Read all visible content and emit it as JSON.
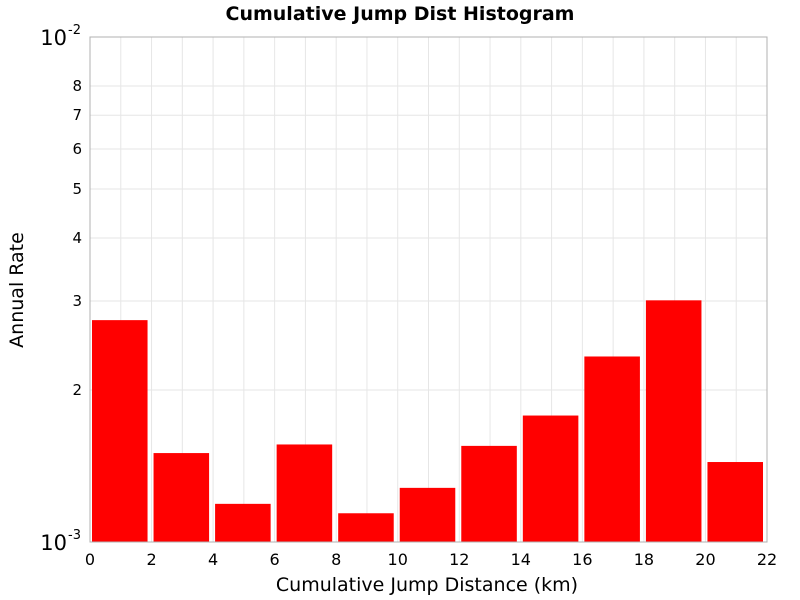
{
  "chart_data": {
    "type": "bar",
    "title": "Cumulative Jump Dist Histogram",
    "xlabel": "Cumulative Jump Distance (km)",
    "ylabel": "Annual Rate",
    "x_scale": "linear",
    "y_scale": "log",
    "xlim": [
      0,
      22
    ],
    "ylim": [
      0.001,
      0.01
    ],
    "x_ticks": [
      "0",
      "2",
      "4",
      "6",
      "8",
      "10",
      "12",
      "14",
      "16",
      "18",
      "20",
      "22"
    ],
    "y_minor_ticks": [
      {
        "value": 0.002,
        "label": "2"
      },
      {
        "value": 0.003,
        "label": "3"
      },
      {
        "value": 0.004,
        "label": "4"
      },
      {
        "value": 0.005,
        "label": "5"
      },
      {
        "value": 0.006,
        "label": "6"
      },
      {
        "value": 0.007,
        "label": "7"
      },
      {
        "value": 0.008,
        "label": "8"
      }
    ],
    "y_major_ticks": [
      {
        "value": 0.001,
        "base": "10",
        "exponent": "-3"
      },
      {
        "value": 0.01,
        "base": "10",
        "exponent": "-2"
      }
    ],
    "bar_color": "#ff0000",
    "grid": true,
    "bins": [
      {
        "x0": 0,
        "x1": 2,
        "value": 0.00275
      },
      {
        "x0": 2,
        "x1": 4,
        "value": 0.0015
      },
      {
        "x0": 4,
        "x1": 6,
        "value": 0.00119
      },
      {
        "x0": 6,
        "x1": 8,
        "value": 0.00156
      },
      {
        "x0": 8,
        "x1": 10,
        "value": 0.00114
      },
      {
        "x0": 10,
        "x1": 12,
        "value": 0.00128
      },
      {
        "x0": 12,
        "x1": 14,
        "value": 0.00155
      },
      {
        "x0": 14,
        "x1": 16,
        "value": 0.00178
      },
      {
        "x0": 16,
        "x1": 18,
        "value": 0.00233
      },
      {
        "x0": 18,
        "x1": 20,
        "value": 0.00301
      },
      {
        "x0": 20,
        "x1": 22,
        "value": 0.00144
      }
    ]
  }
}
